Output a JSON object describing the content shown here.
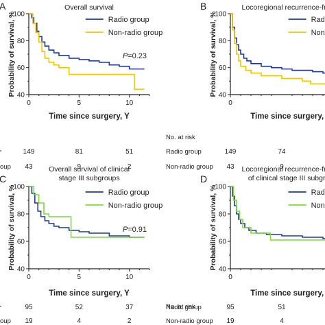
{
  "colors": {
    "radio": "#1f3a93",
    "nonradio": "#f2c400",
    "nonradio_cd": "#7fd93b",
    "axis": "#222222",
    "text": "#222222"
  },
  "chart_data": [
    {
      "type": "line",
      "panel_label": "A",
      "title": "Overall survival",
      "title2": "",
      "xlabel": "Time since surgery, Y",
      "ylabel": "Probability of survival, %",
      "xlim": [
        0,
        12
      ],
      "ylim": [
        40,
        100
      ],
      "xticks": [
        "0",
        "5",
        "10"
      ],
      "yticks": [
        "40",
        "60",
        "80",
        "100"
      ],
      "pvalue": "P=0.23",
      "legend": {
        "position": "top-right"
      },
      "series": [
        {
          "name": "Radio group",
          "color": "#1f3a93",
          "x": [
            0,
            0.3,
            0.5,
            0.8,
            1.0,
            1.3,
            1.6,
            2.0,
            2.5,
            3.0,
            4.0,
            5.0,
            6.0,
            7.0,
            8.0,
            9.0,
            10.0,
            11.5
          ],
          "y": [
            100,
            97,
            93,
            87,
            83,
            79,
            76,
            73,
            71,
            69,
            67,
            66,
            65,
            64,
            62,
            61,
            59,
            59
          ]
        },
        {
          "name": "Non-radio group",
          "color": "#f2c400",
          "x": [
            0,
            0.4,
            0.7,
            1.0,
            1.3,
            1.6,
            2.0,
            2.5,
            3.0,
            4.0,
            6.0,
            9.0,
            10.5,
            11.5
          ],
          "y": [
            100,
            93,
            86,
            79,
            72,
            67,
            64,
            62,
            60,
            55,
            55,
            55,
            44,
            44
          ]
        }
      ],
      "at_risk": {
        "header": "",
        "x": [
          0,
          5,
          10
        ],
        "rows": [
          {
            "label": "Radio group",
            "label_shown": "",
            "values": [
              "149",
              "81",
              "51"
            ]
          },
          {
            "label": "Non-radio group",
            "label_shown": "oup",
            "values": [
              "43",
              "9",
              "2"
            ]
          }
        ]
      }
    },
    {
      "type": "line",
      "panel_label": "B",
      "title": "Locoregional recurrence-free s",
      "title2": "",
      "xlabel": "Time since surgery, Y",
      "ylabel": "Probability of survival, %",
      "xlim": [
        0,
        12
      ],
      "ylim": [
        40,
        100
      ],
      "xticks": [
        "0"
      ],
      "yticks": [
        "40",
        "60",
        "80",
        "100"
      ],
      "pvalue": "",
      "legend": {
        "position": "top-right"
      },
      "series": [
        {
          "name": "Radio group",
          "color": "#1f3a93",
          "x": [
            0,
            0.2,
            0.4,
            0.6,
            0.8,
            1.0,
            1.3,
            1.6,
            2.0,
            3.0,
            4.0,
            5.0,
            6.0,
            7.0,
            8.0,
            9.0,
            10.0,
            12.0
          ],
          "y": [
            100,
            90,
            82,
            77,
            73,
            70,
            67,
            65,
            63,
            61,
            60,
            59,
            58,
            58,
            57,
            56,
            55,
            55
          ]
        },
        {
          "name": "Non-radio group",
          "color": "#f2c400",
          "x": [
            0,
            0.2,
            0.4,
            0.6,
            0.8,
            1.0,
            1.5,
            2.0,
            3.0,
            5.0,
            7.0,
            7.8,
            12.0
          ],
          "y": [
            100,
            88,
            78,
            70,
            65,
            61,
            58,
            56,
            54,
            52,
            50,
            48,
            48
          ]
        }
      ],
      "at_risk": {
        "header": "No. at risk",
        "x": [
          0,
          5
        ],
        "rows": [
          {
            "label": "Radio group",
            "label_shown": "Radio  group",
            "values": [
              "149",
              "74"
            ]
          },
          {
            "label": "Non-radio group",
            "label_shown": "Non-radio  group",
            "values": [
              "43",
              "9"
            ]
          }
        ]
      }
    },
    {
      "type": "line",
      "panel_label": "C",
      "title": "Overall survival of clinical",
      "title2": "stage III subgroups",
      "xlabel": "Time since surgery, Y",
      "ylabel": "Probability of survival, %",
      "xlim": [
        0,
        12
      ],
      "ylim": [
        40,
        100
      ],
      "xticks": [
        "0",
        "5",
        "10"
      ],
      "yticks": [
        "40",
        "60",
        "80",
        "100"
      ],
      "pvalue": "P=0.91",
      "legend": {
        "position": "top-right"
      },
      "series": [
        {
          "name": "Radio group",
          "color": "#1f3a93",
          "x": [
            0,
            0.3,
            0.6,
            0.9,
            1.2,
            1.6,
            2.0,
            2.5,
            3.0,
            4.0,
            5.0,
            6.0,
            8.0,
            10.0,
            11.5
          ],
          "y": [
            100,
            95,
            88,
            82,
            78,
            75,
            73,
            71,
            70,
            68,
            67,
            66,
            64,
            63,
            63
          ]
        },
        {
          "name": "Non-radio group",
          "color": "#7fd93b",
          "x": [
            0,
            0.5,
            1.0,
            1.5,
            2.0,
            4.0,
            4.2,
            11.5
          ],
          "y": [
            100,
            94,
            88,
            80,
            78,
            78,
            63,
            63
          ]
        }
      ],
      "at_risk": {
        "header": "",
        "x": [
          0,
          5,
          10
        ],
        "rows": [
          {
            "label": "Radio group",
            "label_shown": "",
            "values": [
              "95",
              "52",
              "37"
            ]
          },
          {
            "label": "Non-radio group",
            "label_shown": "oup",
            "values": [
              "19",
              "4",
              "2"
            ]
          }
        ]
      }
    },
    {
      "type": "line",
      "panel_label": "D",
      "title": "Locoregional recurrence-free s",
      "title2": "of clinical stage III subgrou",
      "xlabel": "Time since surgery, Y",
      "ylabel": "Probability of survival, %",
      "xlim": [
        0,
        12
      ],
      "ylim": [
        40,
        100
      ],
      "xticks": [
        "0"
      ],
      "yticks": [
        "40",
        "60",
        "80",
        "100"
      ],
      "pvalue": "",
      "legend": {
        "position": "top-right"
      },
      "series": [
        {
          "name": "Radio group",
          "color": "#1f3a93",
          "x": [
            0,
            0.2,
            0.4,
            0.6,
            0.8,
            1.0,
            1.4,
            1.8,
            2.5,
            3.5,
            5.0,
            7.0,
            9.0,
            12.0
          ],
          "y": [
            100,
            93,
            86,
            80,
            76,
            73,
            70,
            68,
            66,
            65,
            64,
            63,
            62,
            61
          ]
        },
        {
          "name": "Non-radio group",
          "color": "#7fd93b",
          "x": [
            0,
            0.3,
            0.6,
            0.9,
            1.2,
            2.0,
            3.5,
            3.9,
            12.0
          ],
          "y": [
            100,
            90,
            82,
            76,
            70,
            66,
            66,
            61,
            61
          ]
        }
      ],
      "at_risk": {
        "header": "No. at risk",
        "x": [
          0,
          5
        ],
        "rows": [
          {
            "label": "Radio group",
            "label_shown": "Radio  group",
            "values": [
              "95",
              "51"
            ]
          },
          {
            "label": "Non-radio group",
            "label_shown": "Non-radio  group",
            "values": [
              "19",
              "4"
            ]
          }
        ]
      }
    }
  ]
}
